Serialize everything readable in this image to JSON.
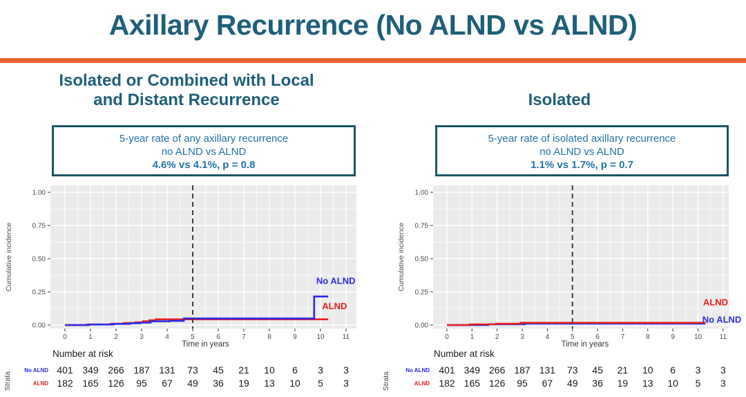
{
  "slide_title": "Axillary Recurrence (No ALND vs ALND)",
  "accent": {
    "rule_color": "#E8622D",
    "title_color": "#1E5F7A",
    "box_border_color": "#1B5666",
    "box_text_color": "#2273A7",
    "panel_bg": "#EBEBEB",
    "grid_color": "#FFFFFF",
    "axis_text_color": "#4D4D4D",
    "blue": "#2A2AE8",
    "red": "#E8201E"
  },
  "chart_data": [
    {
      "type": "line",
      "subtitle": "Isolated or Combined with Local\nand Distant Recurrence",
      "stat_box": {
        "line1": "5-year rate of any axillary recurrence",
        "line2": "no ALND vs ALND",
        "bold": "4.6% vs 4.1%, p = 0.8"
      },
      "xlabel": "Time in years",
      "ylabel": "Cumulative incidence",
      "xlim": [
        -0.55,
        11.45
      ],
      "ylim": [
        -0.026,
        1.052
      ],
      "xticks": [
        0,
        1,
        2,
        3,
        4,
        5,
        6,
        7,
        8,
        9,
        10,
        11
      ],
      "yticks": [
        0.0,
        0.25,
        0.5,
        0.75,
        1.0
      ],
      "grid": true,
      "vline_x": 5,
      "series": [
        {
          "name": "ALND",
          "color": "red",
          "points": [
            [
              0,
              0
            ],
            [
              0.85,
              0.004
            ],
            [
              1.8,
              0.01
            ],
            [
              2.3,
              0.015
            ],
            [
              2.75,
              0.021
            ],
            [
              3.05,
              0.028
            ],
            [
              3.3,
              0.036
            ],
            [
              3.55,
              0.043
            ]
          ],
          "end_x": 10.3
        },
        {
          "name": "No ALND",
          "color": "blue",
          "points": [
            [
              0,
              0
            ],
            [
              0.95,
              0.004
            ],
            [
              1.9,
              0.009
            ],
            [
              2.55,
              0.014
            ],
            [
              2.95,
              0.018
            ],
            [
              3.35,
              0.028
            ],
            [
              4.1,
              0.032
            ],
            [
              4.65,
              0.05
            ],
            [
              9.75,
              0.215
            ]
          ],
          "end_x": 10.3
        }
      ],
      "curve_labels": [
        {
          "text": "No ALND",
          "color": "blue",
          "x": 10.6,
          "y": 0.33
        },
        {
          "text": "ALND",
          "color": "red",
          "x": 10.55,
          "y": 0.14
        }
      ],
      "risk_table": {
        "header": "Number at risk",
        "strata": "Strata",
        "rows": [
          {
            "name": "No ALND",
            "color": "blue",
            "values": [
              "401",
              "349",
              "266",
              "187",
              "131",
              "73",
              "45",
              "21",
              "10",
              "6",
              "3",
              "3"
            ]
          },
          {
            "name": "ALND",
            "color": "red",
            "values": [
              "182",
              "165",
              "126",
              "95",
              "67",
              "49",
              "36",
              "19",
              "13",
              "10",
              "5",
              "3"
            ]
          }
        ]
      }
    },
    {
      "type": "line",
      "subtitle": "Isolated",
      "stat_box": {
        "line1": "5-year rate of isolated axillary recurrence",
        "line2": "no ALND vs ALND",
        "bold": "1.1% vs 1.7%, p = 0.7"
      },
      "xlabel": "Time in years",
      "ylabel": "Cumulative incidence",
      "xlim": [
        -0.55,
        11.45
      ],
      "ylim": [
        -0.026,
        1.052
      ],
      "xticks": [
        0,
        1,
        2,
        3,
        4,
        5,
        6,
        7,
        8,
        9,
        10,
        11
      ],
      "yticks": [
        0.0,
        0.25,
        0.5,
        0.75,
        1.0
      ],
      "grid": true,
      "vline_x": 5,
      "series": [
        {
          "name": "No ALND",
          "color": "blue",
          "points": [
            [
              0,
              0
            ],
            [
              1.65,
              0.006
            ],
            [
              3.1,
              0.011
            ]
          ],
          "end_x": 10.3
        },
        {
          "name": "ALND",
          "color": "red",
          "points": [
            [
              0,
              0
            ],
            [
              0.9,
              0.005
            ],
            [
              1.95,
              0.01
            ],
            [
              2.95,
              0.017
            ]
          ],
          "end_x": 10.3
        }
      ],
      "curve_labels": [
        {
          "text": "ALND",
          "color": "red",
          "x": 10.7,
          "y": 0.17
        },
        {
          "text": "No ALND",
          "color": "blue",
          "x": 10.95,
          "y": 0.04
        }
      ],
      "risk_table": {
        "header": "Number at risk",
        "strata": "Strata",
        "rows": [
          {
            "name": "No ALND",
            "color": "blue",
            "values": [
              "401",
              "349",
              "266",
              "187",
              "131",
              "73",
              "45",
              "21",
              "10",
              "6",
              "3",
              "3"
            ]
          },
          {
            "name": "ALND",
            "color": "red",
            "values": [
              "182",
              "165",
              "126",
              "95",
              "67",
              "49",
              "36",
              "19",
              "13",
              "10",
              "5",
              "3"
            ]
          }
        ]
      }
    }
  ]
}
